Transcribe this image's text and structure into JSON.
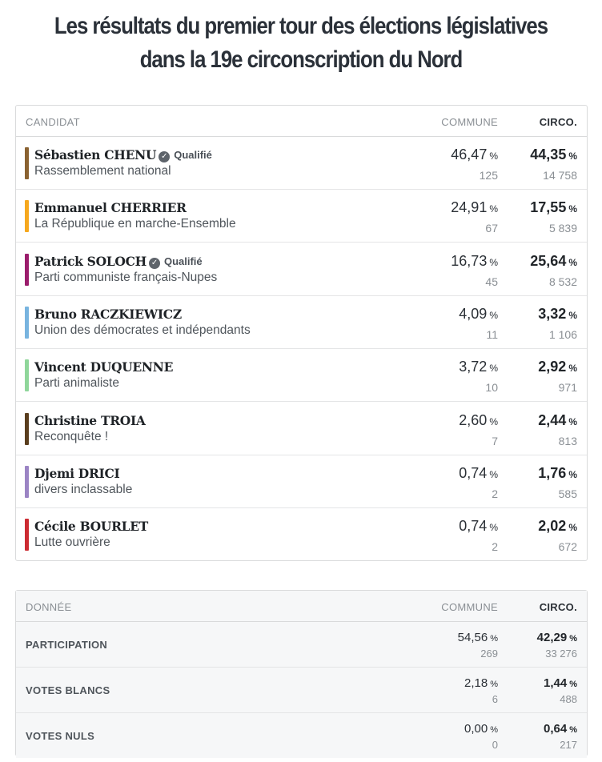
{
  "title": "Les résultats du premier tour des élections législatives dans la 19e circonscription du Nord",
  "results": {
    "headers": {
      "candidate": "CANDIDAT",
      "commune": "COMMUNE",
      "circo": "CIRCO."
    },
    "percent_unit": "%",
    "candidates": [
      {
        "name": "Sébastien CHENU",
        "qualified": "Qualifié",
        "party": "Rassemblement national",
        "color": "#8a6231",
        "commune_pct": "46,47",
        "commune_votes": "125",
        "circo_pct": "44,35",
        "circo_votes": "14 758"
      },
      {
        "name": "Emmanuel CHERRIER",
        "qualified": "",
        "party": "La République en marche-Ensemble",
        "color": "#f6a81e",
        "commune_pct": "24,91",
        "commune_votes": "67",
        "circo_pct": "17,55",
        "circo_votes": "5 839"
      },
      {
        "name": "Patrick SOLOCH",
        "qualified": "Qualifié",
        "party": "Parti communiste français-Nupes",
        "color": "#9b1d6c",
        "commune_pct": "16,73",
        "commune_votes": "45",
        "circo_pct": "25,64",
        "circo_votes": "8 532"
      },
      {
        "name": "Bruno RACZKIEWICZ",
        "qualified": "",
        "party": "Union des démocrates et indépendants",
        "color": "#78b4df",
        "commune_pct": "4,09",
        "commune_votes": "11",
        "circo_pct": "3,32",
        "circo_votes": "1 106"
      },
      {
        "name": "Vincent DUQUENNE",
        "qualified": "",
        "party": "Parti animaliste",
        "color": "#8fd69a",
        "commune_pct": "3,72",
        "commune_votes": "10",
        "circo_pct": "2,92",
        "circo_votes": "971"
      },
      {
        "name": "Christine TROIA",
        "qualified": "",
        "party": "Reconquête !",
        "color": "#5a3e1e",
        "commune_pct": "2,60",
        "commune_votes": "7",
        "circo_pct": "2,44",
        "circo_votes": "813"
      },
      {
        "name": "Djemi DRICI",
        "qualified": "",
        "party": "divers inclassable",
        "color": "#9b84c4",
        "commune_pct": "0,74",
        "commune_votes": "2",
        "circo_pct": "1,76",
        "circo_votes": "585"
      },
      {
        "name": "Cécile BOURLET",
        "qualified": "",
        "party": "Lutte ouvrière",
        "color": "#cc2b32",
        "commune_pct": "0,74",
        "commune_votes": "2",
        "circo_pct": "2,02",
        "circo_votes": "672"
      }
    ]
  },
  "data_table": {
    "headers": {
      "label": "DONNÉE",
      "commune": "COMMUNE",
      "circo": "CIRCO."
    },
    "rows": [
      {
        "label": "PARTICIPATION",
        "commune_pct": "54,56",
        "commune_count": "269",
        "circo_pct": "42,29",
        "circo_count": "33 276"
      },
      {
        "label": "VOTES BLANCS",
        "commune_pct": "2,18",
        "commune_count": "6",
        "circo_pct": "1,44",
        "circo_count": "488"
      },
      {
        "label": "VOTES NULS",
        "commune_pct": "0,00",
        "commune_count": "0",
        "circo_pct": "0,64",
        "circo_count": "217"
      }
    ]
  }
}
